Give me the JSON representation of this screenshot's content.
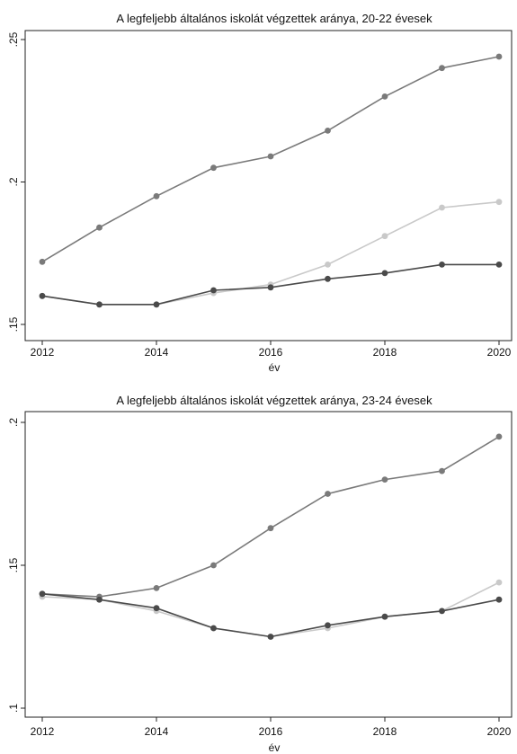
{
  "chart_data": [
    {
      "type": "line",
      "title": "A legfeljebb általános iskolát végzettek aránya, 20-22 évesek",
      "xlabel": "év",
      "ylabel": "",
      "x": [
        2012,
        2013,
        2014,
        2015,
        2016,
        2017,
        2018,
        2019,
        2020
      ],
      "xticks": [
        2012,
        2014,
        2016,
        2018,
        2020
      ],
      "xtick_labels": [
        "2012",
        "2014",
        "2016",
        "2018",
        "2020"
      ],
      "yticks": [
        0.15,
        0.2,
        0.25
      ],
      "ytick_labels": [
        ".15",
        ".2",
        ".25"
      ],
      "xlim": [
        2012,
        2020
      ],
      "ylim": [
        0.15,
        0.25
      ],
      "grid": false,
      "series": [
        {
          "color": "#7a7a7a",
          "values": [
            0.172,
            0.184,
            0.195,
            0.205,
            0.209,
            0.218,
            0.23,
            0.24,
            0.244
          ]
        },
        {
          "color": "#c9c9c9",
          "values": [
            0.16,
            0.157,
            0.157,
            0.161,
            0.164,
            0.171,
            0.181,
            0.191,
            0.193
          ]
        },
        {
          "color": "#4a4a4a",
          "values": [
            0.16,
            0.157,
            0.157,
            0.162,
            0.163,
            0.166,
            0.168,
            0.171,
            0.171
          ]
        }
      ]
    },
    {
      "type": "line",
      "title": "A legfeljebb általános iskolát végzettek aránya, 23-24 évesek",
      "xlabel": "év",
      "ylabel": "",
      "x": [
        2012,
        2013,
        2014,
        2015,
        2016,
        2017,
        2018,
        2019,
        2020
      ],
      "xticks": [
        2012,
        2014,
        2016,
        2018,
        2020
      ],
      "xtick_labels": [
        "2012",
        "2014",
        "2016",
        "2018",
        "2020"
      ],
      "yticks": [
        0.1,
        0.15,
        0.2
      ],
      "ytick_labels": [
        ".1",
        ".15",
        ".2"
      ],
      "xlim": [
        2012,
        2020
      ],
      "ylim": [
        0.1,
        0.2
      ],
      "grid": false,
      "series": [
        {
          "color": "#7a7a7a",
          "values": [
            0.14,
            0.139,
            0.142,
            0.15,
            0.163,
            0.175,
            0.18,
            0.183,
            0.195
          ]
        },
        {
          "color": "#c9c9c9",
          "values": [
            0.139,
            0.138,
            0.134,
            0.128,
            0.125,
            0.128,
            0.132,
            0.134,
            0.144
          ]
        },
        {
          "color": "#4a4a4a",
          "values": [
            0.14,
            0.138,
            0.135,
            0.128,
            0.125,
            0.129,
            0.132,
            0.134,
            0.138
          ]
        }
      ]
    }
  ]
}
